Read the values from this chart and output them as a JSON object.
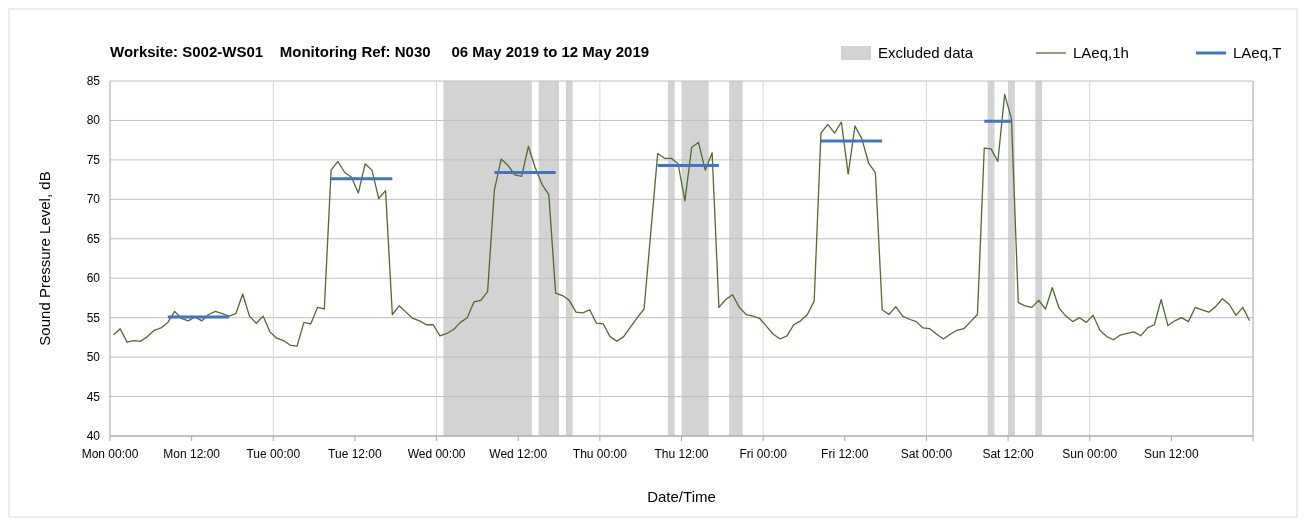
{
  "chart_data": {
    "type": "line",
    "title": "Worksite: S002-WS01    Monitoring Ref: N030     06 May 2019 to 12 May 2019",
    "xlabel": "Date/Time",
    "ylabel": "Sound Pressure Level, dB",
    "xlim": [
      "2019-05-06T00:00",
      "2019-05-13T00:00"
    ],
    "xticks": [
      {
        "value": "2019-05-06T00:00",
        "label": "Mon 00:00"
      },
      {
        "value": "2019-05-06T12:00",
        "label": "Mon 12:00"
      },
      {
        "value": "2019-05-07T00:00",
        "label": "Tue 00:00"
      },
      {
        "value": "2019-05-07T12:00",
        "label": "Tue 12:00"
      },
      {
        "value": "2019-05-08T00:00",
        "label": "Wed 00:00"
      },
      {
        "value": "2019-05-08T12:00",
        "label": "Wed 12:00"
      },
      {
        "value": "2019-05-09T00:00",
        "label": "Thu 00:00"
      },
      {
        "value": "2019-05-09T12:00",
        "label": "Thu 12:00"
      },
      {
        "value": "2019-05-10T00:00",
        "label": "Fri 00:00"
      },
      {
        "value": "2019-05-10T12:00",
        "label": "Fri 12:00"
      },
      {
        "value": "2019-05-11T00:00",
        "label": "Sat 00:00"
      },
      {
        "value": "2019-05-11T12:00",
        "label": "Sat 12:00"
      },
      {
        "value": "2019-05-12T00:00",
        "label": "Sun 00:00"
      },
      {
        "value": "2019-05-12T12:00",
        "label": "Sun 12:00"
      },
      {
        "value": "2019-05-13T00:00",
        "label": null
      }
    ],
    "ylim": [
      40,
      85
    ],
    "yticks": [
      40,
      45,
      50,
      55,
      60,
      65,
      70,
      75,
      80,
      85
    ],
    "grid": "y",
    "legend": "top right",
    "ref_lines": [
      {
        "axis": "x",
        "value": "2019-05-07T00:00",
        "color": "#d9d9d9"
      },
      {
        "axis": "x",
        "value": "2019-05-08T00:00",
        "color": "#d9d9d9"
      },
      {
        "axis": "x",
        "value": "2019-05-09T00:00",
        "color": "#d9d9d9"
      },
      {
        "axis": "x",
        "value": "2019-05-10T00:00",
        "color": "#d9d9d9"
      },
      {
        "axis": "x",
        "value": "2019-05-11T00:00",
        "color": "#d9d9d9"
      },
      {
        "axis": "x",
        "value": "2019-05-12T00:00",
        "color": "#d9d9d9"
      }
    ],
    "bands": [
      {
        "axis": "x",
        "from": "2019-05-08T01:00",
        "to": "2019-05-08T14:00",
        "label": "Excluded data",
        "color": "#d3d3d3"
      },
      {
        "axis": "x",
        "from": "2019-05-08T15:00",
        "to": "2019-05-08T18:00",
        "color": "#d3d3d3"
      },
      {
        "axis": "x",
        "from": "2019-05-08T19:00",
        "to": "2019-05-08T20:00",
        "color": "#d3d3d3"
      },
      {
        "axis": "x",
        "from": "2019-05-09T10:00",
        "to": "2019-05-09T11:00",
        "color": "#d3d3d3"
      },
      {
        "axis": "x",
        "from": "2019-05-09T12:00",
        "to": "2019-05-09T16:00",
        "color": "#d3d3d3"
      },
      {
        "axis": "x",
        "from": "2019-05-09T19:00",
        "to": "2019-05-09T21:00",
        "color": "#d3d3d3"
      },
      {
        "axis": "x",
        "from": "2019-05-11T09:00",
        "to": "2019-05-11T10:00",
        "color": "#d3d3d3"
      },
      {
        "axis": "x",
        "from": "2019-05-11T12:00",
        "to": "2019-05-11T13:00",
        "color": "#d3d3d3"
      },
      {
        "axis": "x",
        "from": "2019-05-11T16:00",
        "to": "2019-05-11T17:00",
        "color": "#d3d3d3"
      }
    ],
    "series": [
      {
        "name": "LAeq,1h",
        "color": "#4e6b30",
        "x": [
          "2019-05-06T00:30",
          "2019-05-06T01:30",
          "2019-05-06T02:30",
          "2019-05-06T03:30",
          "2019-05-06T04:30",
          "2019-05-06T05:30",
          "2019-05-06T06:30",
          "2019-05-06T07:30",
          "2019-05-06T08:30",
          "2019-05-06T09:30",
          "2019-05-06T10:30",
          "2019-05-06T11:30",
          "2019-05-06T12:30",
          "2019-05-06T13:30",
          "2019-05-06T14:30",
          "2019-05-06T15:30",
          "2019-05-06T16:30",
          "2019-05-06T17:30",
          "2019-05-06T18:30",
          "2019-05-06T19:30",
          "2019-05-06T20:30",
          "2019-05-06T21:30",
          "2019-05-06T22:30",
          "2019-05-06T23:30",
          "2019-05-07T00:30",
          "2019-05-07T01:30",
          "2019-05-07T02:30",
          "2019-05-07T03:30",
          "2019-05-07T04:30",
          "2019-05-07T05:30",
          "2019-05-07T06:30",
          "2019-05-07T07:30",
          "2019-05-07T08:30",
          "2019-05-07T09:30",
          "2019-05-07T10:30",
          "2019-05-07T11:30",
          "2019-05-07T12:30",
          "2019-05-07T13:30",
          "2019-05-07T14:30",
          "2019-05-07T15:30",
          "2019-05-07T16:30",
          "2019-05-07T17:30",
          "2019-05-07T18:30",
          "2019-05-07T19:30",
          "2019-05-07T20:30",
          "2019-05-07T21:30",
          "2019-05-07T22:30",
          "2019-05-07T23:30",
          "2019-05-08T00:30",
          "2019-05-08T01:30",
          "2019-05-08T02:30",
          "2019-05-08T03:30",
          "2019-05-08T04:30",
          "2019-05-08T05:30",
          "2019-05-08T06:30",
          "2019-05-08T07:30",
          "2019-05-08T08:30",
          "2019-05-08T09:30",
          "2019-05-08T10:30",
          "2019-05-08T11:30",
          "2019-05-08T12:30",
          "2019-05-08T13:30",
          "2019-05-08T14:30",
          "2019-05-08T15:30",
          "2019-05-08T16:30",
          "2019-05-08T17:30",
          "2019-05-08T18:30",
          "2019-05-08T19:30",
          "2019-05-08T20:30",
          "2019-05-08T21:30",
          "2019-05-08T22:30",
          "2019-05-08T23:30",
          "2019-05-09T00:30",
          "2019-05-09T01:30",
          "2019-05-09T02:30",
          "2019-05-09T03:30",
          "2019-05-09T04:30",
          "2019-05-09T05:30",
          "2019-05-09T06:30",
          "2019-05-09T08:30",
          "2019-05-09T09:30",
          "2019-05-09T10:30",
          "2019-05-09T11:30",
          "2019-05-09T12:30",
          "2019-05-09T13:30",
          "2019-05-09T14:30",
          "2019-05-09T15:30",
          "2019-05-09T16:30",
          "2019-05-09T17:30",
          "2019-05-09T18:30",
          "2019-05-09T19:30",
          "2019-05-09T20:30",
          "2019-05-09T21:30",
          "2019-05-09T22:30",
          "2019-05-09T23:30",
          "2019-05-10T00:30",
          "2019-05-10T01:30",
          "2019-05-10T02:30",
          "2019-05-10T03:30",
          "2019-05-10T04:30",
          "2019-05-10T05:30",
          "2019-05-10T06:30",
          "2019-05-10T07:30",
          "2019-05-10T08:30",
          "2019-05-10T09:30",
          "2019-05-10T10:30",
          "2019-05-10T11:30",
          "2019-05-10T12:30",
          "2019-05-10T13:30",
          "2019-05-10T14:30",
          "2019-05-10T15:30",
          "2019-05-10T16:30",
          "2019-05-10T17:30",
          "2019-05-10T18:30",
          "2019-05-10T19:30",
          "2019-05-10T20:30",
          "2019-05-10T21:30",
          "2019-05-10T22:30",
          "2019-05-10T23:30",
          "2019-05-11T00:30",
          "2019-05-11T01:30",
          "2019-05-11T02:30",
          "2019-05-11T03:30",
          "2019-05-11T04:30",
          "2019-05-11T05:30",
          "2019-05-11T06:30",
          "2019-05-11T07:30",
          "2019-05-11T08:30",
          "2019-05-11T09:30",
          "2019-05-11T10:30",
          "2019-05-11T11:30",
          "2019-05-11T12:30",
          "2019-05-11T13:30",
          "2019-05-11T14:30",
          "2019-05-11T15:30",
          "2019-05-11T16:30",
          "2019-05-11T17:30",
          "2019-05-11T18:30",
          "2019-05-11T19:30",
          "2019-05-11T20:30",
          "2019-05-11T21:30",
          "2019-05-11T22:30",
          "2019-05-11T23:30",
          "2019-05-12T00:30",
          "2019-05-12T01:30",
          "2019-05-12T02:30",
          "2019-05-12T03:30",
          "2019-05-12T04:30",
          "2019-05-12T05:30",
          "2019-05-12T06:30",
          "2019-05-12T07:30",
          "2019-05-12T08:30",
          "2019-05-12T09:30",
          "2019-05-12T10:30",
          "2019-05-12T11:30",
          "2019-05-12T12:30",
          "2019-05-12T13:30",
          "2019-05-12T14:30",
          "2019-05-12T15:30",
          "2019-05-12T16:30",
          "2019-05-12T17:30",
          "2019-05-12T18:30",
          "2019-05-12T19:30",
          "2019-05-12T20:30",
          "2019-05-12T21:30",
          "2019-05-12T22:30",
          "2019-05-12T23:30"
        ],
        "values": [
          52.8,
          53.6,
          51.9,
          52.1,
          52.0,
          52.6,
          53.4,
          53.7,
          54.4,
          55.8,
          54.9,
          54.6,
          55.1,
          54.6,
          55.4,
          55.8,
          55.5,
          55.2,
          55.5,
          58.0,
          55.2,
          54.3,
          55.2,
          53.2,
          52.4,
          52.1,
          51.5,
          51.4,
          54.4,
          54.2,
          56.3,
          56.1,
          73.7,
          74.8,
          73.4,
          72.8,
          70.8,
          74.5,
          73.7,
          70.1,
          71.1,
          55.4,
          56.5,
          55.7,
          54.9,
          54.6,
          54.1,
          54.1,
          52.7,
          53.0,
          53.5,
          54.4,
          55.0,
          57.0,
          57.2,
          58.3,
          71.2,
          75.1,
          74.3,
          73.1,
          72.9,
          76.7,
          74.0,
          71.9,
          70.6,
          58.1,
          57.8,
          57.2,
          55.7,
          55.6,
          56.0,
          54.3,
          54.2,
          52.6,
          52.0,
          52.6,
          53.8,
          55.0,
          56.1,
          75.8,
          75.2,
          75.2,
          74.5,
          69.8,
          76.6,
          77.2,
          73.7,
          75.9,
          56.3,
          57.3,
          57.9,
          56.3,
          55.4,
          55.2,
          54.9,
          53.9,
          52.9,
          52.3,
          52.7,
          54.1,
          54.6,
          55.4,
          57.1,
          78.4,
          79.5,
          78.4,
          79.8,
          73.2,
          79.3,
          77.7,
          74.6,
          73.4,
          56.0,
          55.4,
          56.4,
          55.2,
          54.8,
          54.5,
          53.7,
          53.6,
          52.9,
          52.3,
          52.9,
          53.4,
          53.6,
          54.5,
          55.4,
          76.5,
          76.4,
          74.8,
          83.3,
          80.2,
          56.9,
          56.5,
          56.3,
          57.2,
          56.1,
          58.8,
          56.2,
          55.2,
          54.5,
          55.0,
          54.4,
          55.3,
          53.4,
          52.6,
          52.2,
          52.8,
          53.0,
          53.2,
          52.7,
          53.7,
          54.1,
          57.3,
          54.0,
          54.6,
          55.0,
          54.5,
          56.3,
          56.0,
          55.7,
          56.4,
          57.4,
          56.7,
          55.3,
          56.3,
          54.6
        ]
      },
      {
        "name": "LAeq,T",
        "color": "#4472c4",
        "x": [
          "2019-05-06T08:30",
          "2019-05-06T17:30",
          "2019-05-07T01:00",
          "2019-05-07T08:30",
          "2019-05-07T17:30",
          "2019-05-08T01:00",
          "2019-05-08T08:30",
          "2019-05-08T17:30",
          "2019-05-09T01:00",
          "2019-05-09T08:30",
          "2019-05-09T17:30",
          "2019-05-10T01:00",
          "2019-05-10T08:30",
          "2019-05-10T17:30",
          "2019-05-11T01:00",
          "2019-05-11T08:30",
          "2019-05-11T12:30"
        ],
        "values": [
          55.1,
          55.1,
          null,
          72.6,
          72.6,
          null,
          73.4,
          73.4,
          null,
          74.3,
          74.3,
          null,
          77.4,
          77.4,
          null,
          79.9,
          79.9
        ]
      }
    ]
  }
}
